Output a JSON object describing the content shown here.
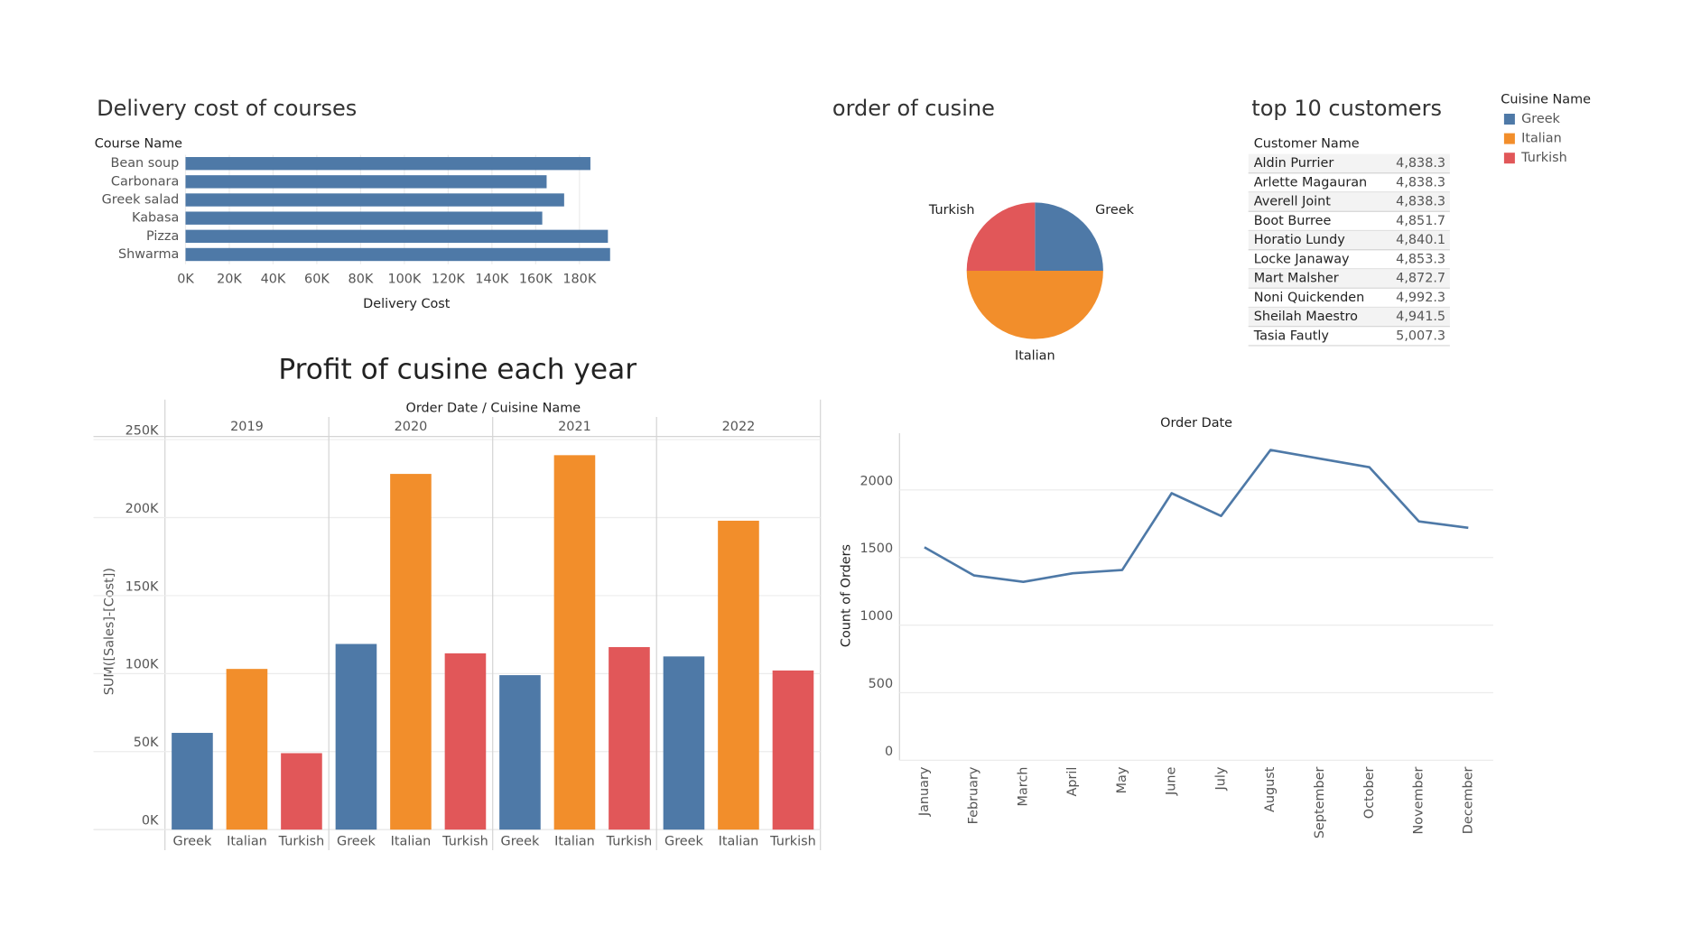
{
  "chart_data": [
    {
      "type": "hbar",
      "title": "Delivery cost of courses",
      "category_label": "Course Name",
      "x_label": "Delivery Cost",
      "categories": [
        "Bean soup",
        "Carbonara",
        "Greek salad",
        "Kabasa",
        "Pizza",
        "Shwarma"
      ],
      "values": [
        185000,
        165000,
        173000,
        163000,
        193000,
        194000
      ],
      "color": "#4e79a7",
      "xlim": [
        0,
        200000
      ],
      "xticks": [
        {
          "value": 0,
          "label": "0K"
        },
        {
          "value": 20000,
          "label": "20K"
        },
        {
          "value": 40000,
          "label": "40K"
        },
        {
          "value": 60000,
          "label": "60K"
        },
        {
          "value": 80000,
          "label": "80K"
        },
        {
          "value": 100000,
          "label": "100K"
        },
        {
          "value": 120000,
          "label": "120K"
        },
        {
          "value": 140000,
          "label": "140K"
        },
        {
          "value": 160000,
          "label": "160K"
        },
        {
          "value": 180000,
          "label": "180K"
        }
      ],
      "grid": true
    },
    {
      "type": "pie",
      "title": "order of cusine",
      "categories": [
        "Greek",
        "Italian",
        "Turkish"
      ],
      "values": [
        25,
        50,
        25
      ],
      "colors": [
        "#4e79a7",
        "#f28e2b",
        "#e15759"
      ]
    },
    {
      "type": "grouped_bar",
      "title": "Profit of cusine each year",
      "header": "Order Date  /  Cuisine Name",
      "y_label": "SUM([Sales]-[Cost])",
      "categories": [
        "2019",
        "2020",
        "2021",
        "2022"
      ],
      "series": [
        {
          "name": "Greek",
          "color": "#4e79a7",
          "values": [
            62000,
            119000,
            99000,
            111000
          ]
        },
        {
          "name": "Italian",
          "color": "#f28e2b",
          "values": [
            103000,
            228000,
            240000,
            198000
          ]
        },
        {
          "name": "Turkish",
          "color": "#e15759",
          "values": [
            49000,
            113000,
            117000,
            102000
          ]
        }
      ],
      "ylim": [
        0,
        252000
      ],
      "yticks": [
        {
          "value": 0,
          "label": "0K"
        },
        {
          "value": 50000,
          "label": "50K"
        },
        {
          "value": 100000,
          "label": "100K"
        },
        {
          "value": 150000,
          "label": "150K"
        },
        {
          "value": 200000,
          "label": "200K"
        },
        {
          "value": 250000,
          "label": "250K"
        }
      ],
      "grid": true
    },
    {
      "type": "line",
      "title": "Order Date",
      "y_label": "Count of Orders",
      "categories": [
        "January",
        "February",
        "March",
        "April",
        "May",
        "June",
        "July",
        "August",
        "September",
        "October",
        "November",
        "December"
      ],
      "values": [
        1576,
        1368,
        1320,
        1384,
        1408,
        1976,
        1808,
        2296,
        2232,
        2168,
        1768,
        1720
      ],
      "color": "#4e79a7",
      "ylim": [
        0,
        2420
      ],
      "yticks": [
        0,
        500,
        1000,
        1500,
        2000
      ],
      "grid": true
    }
  ],
  "table": {
    "title": "top 10 customers",
    "header": "Customer Name",
    "rows": [
      [
        "Aldin Purrier",
        "4,838.3"
      ],
      [
        "Arlette Magauran",
        "4,838.3"
      ],
      [
        "Averell Joint",
        "4,838.3"
      ],
      [
        "Boot Burree",
        "4,851.7"
      ],
      [
        "Horatio Lundy",
        "4,840.1"
      ],
      [
        "Locke Janaway",
        "4,853.3"
      ],
      [
        "Mart Malsher",
        "4,872.7"
      ],
      [
        "Noni Quickenden",
        "4,992.3"
      ],
      [
        "Sheilah Maestro",
        "4,941.5"
      ],
      [
        "Tasia Fautly",
        "5,007.3"
      ]
    ]
  },
  "legend": {
    "title": "Cuisine Name",
    "items": [
      {
        "name": "Greek",
        "color": "#4e79a7"
      },
      {
        "name": "Italian",
        "color": "#f28e2b"
      },
      {
        "name": "Turkish",
        "color": "#e15759"
      }
    ]
  }
}
